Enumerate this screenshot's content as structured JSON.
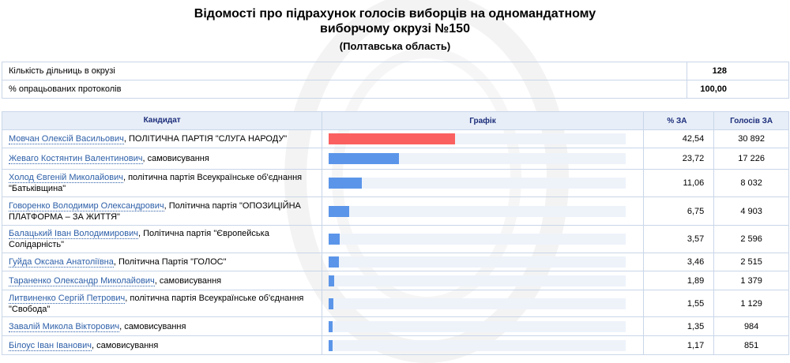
{
  "title_line1": "Відомості про підрахунок голосів виборців на одномандатному",
  "title_line2": "виборчому окрузі №150",
  "region": "(Полтавська область)",
  "info": [
    {
      "label": "Кількість дільниць в окрузі",
      "value": "128"
    },
    {
      "label": "% опрацьованих протоколів",
      "value": "100,00"
    }
  ],
  "headers": {
    "candidate": "Кандидат",
    "graph": "Графік",
    "pct": "% ЗА",
    "votes": "Голосів ЗА"
  },
  "colors": {
    "leader_bar": "#fb6060",
    "bar": "#5b95e9",
    "bar_track": "#eef3fa"
  },
  "candidates": [
    {
      "name": "Мовчан Олексій Васильович",
      "party": ", ПОЛІТИЧНА ПАРТІЯ \"СЛУГА НАРОДУ\"",
      "pct_text": "42,54",
      "pct": 42.54,
      "votes": "30 892"
    },
    {
      "name": "Жеваго Костянтин Валентинович",
      "party": ", самовисування",
      "pct_text": "23,72",
      "pct": 23.72,
      "votes": "17 226"
    },
    {
      "name": "Холод Євгеній Миколайович",
      "party": ", політична партія Всеукраїнське об'єднання \"Батьківщина\"",
      "pct_text": "11,06",
      "pct": 11.06,
      "votes": "8 032"
    },
    {
      "name": "Говоренко Володимир Олександрович",
      "party": ", Політична партія \"ОПОЗИЦІЙНА ПЛАТФОРМА – ЗА ЖИТТЯ\"",
      "pct_text": "6,75",
      "pct": 6.75,
      "votes": "4 903"
    },
    {
      "name": "Балацький Іван Володимирович",
      "party": ", Політична партія \"Європейська Солідарність\"",
      "pct_text": "3,57",
      "pct": 3.57,
      "votes": "2 596"
    },
    {
      "name": "Гуйда Оксана Анатоліївна",
      "party": ", Політична Партія \"ГОЛОС\"",
      "pct_text": "3,46",
      "pct": 3.46,
      "votes": "2 515"
    },
    {
      "name": "Тараненко Олександр Миколайович",
      "party": ", самовисування",
      "pct_text": "1,89",
      "pct": 1.89,
      "votes": "1 379"
    },
    {
      "name": "Литвиненко Сергій Петрович",
      "party": ", політична партія Всеукраїнське об'єднання \"Свобода\"",
      "pct_text": "1,55",
      "pct": 1.55,
      "votes": "1 129"
    },
    {
      "name": "Завалій Микола Вікторович",
      "party": ", самовисування",
      "pct_text": "1,35",
      "pct": 1.35,
      "votes": "984"
    },
    {
      "name": "Білоус Іван Іванович",
      "party": ", самовисування",
      "pct_text": "1,17",
      "pct": 1.17,
      "votes": "851"
    }
  ]
}
